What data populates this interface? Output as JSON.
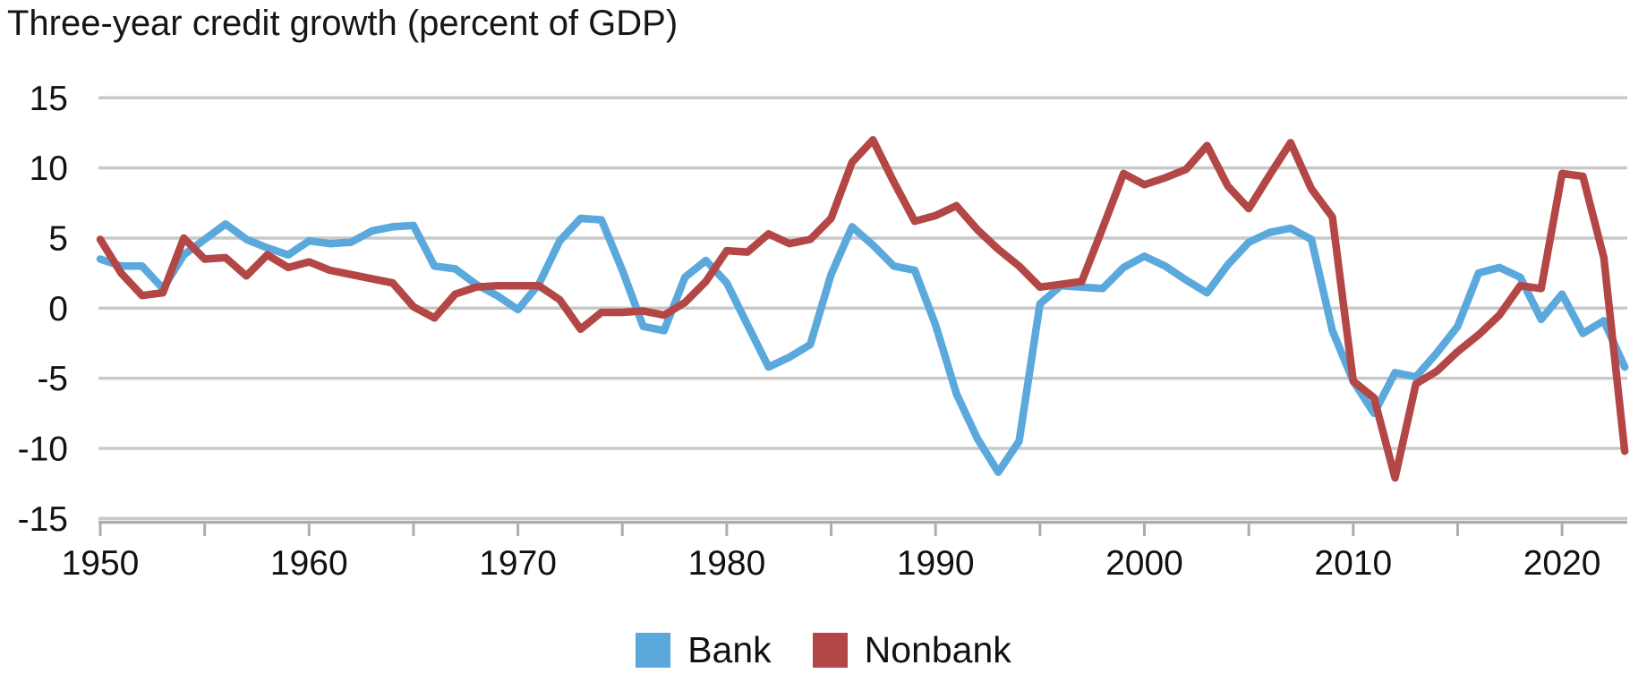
{
  "title": "Three-year credit growth (percent of GDP)",
  "legend": [
    {
      "label": "Bank",
      "color": "#5BA9DC"
    },
    {
      "label": "Nonbank",
      "color": "#B34745"
    }
  ],
  "colors": {
    "bank_line": "#5BA9DC",
    "nonbank_line": "#B34745",
    "gridline": "#C9C9C9",
    "axis_line": "#ADADAD",
    "text": "#111111",
    "background": "#FFFFFF"
  },
  "y_axis_tick_labels": [
    "15",
    "10",
    "5",
    "0",
    "-5",
    "-10",
    "-15"
  ],
  "x_axis_tick_labels": [
    "1950",
    "1960",
    "1970",
    "1980",
    "1990",
    "2000",
    "2010",
    "2020"
  ],
  "chart_data": {
    "type": "line",
    "title": "Three-year credit growth (percent of GDP)",
    "xlabel": "",
    "ylabel": "",
    "ylim": [
      -15,
      15
    ],
    "ytick_interval": 5,
    "xtick_labeled_years": [
      1950,
      1960,
      1970,
      1980,
      1990,
      2000,
      2010,
      2020
    ],
    "xtick_minor_interval_years": 5,
    "grid": "horizontal",
    "legend_position": "bottom-center",
    "years": [
      1950,
      1951,
      1952,
      1953,
      1954,
      1955,
      1956,
      1957,
      1958,
      1959,
      1960,
      1961,
      1962,
      1963,
      1964,
      1965,
      1966,
      1967,
      1968,
      1969,
      1970,
      1971,
      1972,
      1973,
      1974,
      1975,
      1976,
      1977,
      1978,
      1979,
      1980,
      1981,
      1982,
      1983,
      1984,
      1985,
      1986,
      1987,
      1988,
      1989,
      1990,
      1991,
      1992,
      1993,
      1994,
      1995,
      1996,
      1997,
      1998,
      1999,
      2000,
      2001,
      2002,
      2003,
      2004,
      2005,
      2006,
      2007,
      2008,
      2009,
      2010,
      2011,
      2012,
      2013,
      2014,
      2015,
      2016,
      2017,
      2018,
      2019,
      2020,
      2021,
      2022,
      2023
    ],
    "series": [
      {
        "name": "Bank",
        "color": "#5BA9DC",
        "values": [
          3.5,
          3.0,
          3.0,
          1.4,
          3.8,
          4.9,
          6.0,
          4.9,
          4.3,
          3.8,
          4.8,
          4.6,
          4.7,
          5.5,
          5.8,
          5.9,
          3.0,
          2.8,
          1.7,
          0.9,
          -0.1,
          1.7,
          4.8,
          6.4,
          6.3,
          2.7,
          -1.3,
          -1.6,
          2.2,
          3.4,
          1.8,
          -1.2,
          -4.2,
          -3.5,
          -2.6,
          2.4,
          5.8,
          4.5,
          3.0,
          2.7,
          -1.2,
          -6.1,
          -9.3,
          -11.7,
          -9.5,
          0.3,
          1.6,
          1.5,
          1.4,
          2.9,
          3.7,
          3.0,
          2.0,
          1.1,
          3.1,
          4.7,
          5.4,
          5.7,
          4.9,
          -1.6,
          -5.2,
          -7.5,
          -4.6,
          -4.9,
          -3.2,
          -1.3,
          2.5,
          2.9,
          2.2,
          -0.8,
          1.0,
          -1.8,
          -0.9,
          -4.2
        ]
      },
      {
        "name": "Nonbank",
        "color": "#B34745",
        "values": [
          4.9,
          2.5,
          0.9,
          1.1,
          5.0,
          3.5,
          3.6,
          2.3,
          3.8,
          2.9,
          3.3,
          2.7,
          2.4,
          2.1,
          1.8,
          0.1,
          -0.7,
          1.0,
          1.5,
          1.6,
          1.6,
          1.6,
          0.6,
          -1.5,
          -0.3,
          -0.3,
          -0.2,
          -0.5,
          0.4,
          1.9,
          4.1,
          4.0,
          5.3,
          4.6,
          4.9,
          6.4,
          10.4,
          12.0,
          9.0,
          6.2,
          6.6,
          7.3,
          5.6,
          4.2,
          3.0,
          1.5,
          1.7,
          1.9,
          5.7,
          9.6,
          8.8,
          9.3,
          9.9,
          11.6,
          8.7,
          7.1,
          9.5,
          11.8,
          8.5,
          6.5,
          -5.2,
          -6.4,
          -12.1,
          -5.4,
          -4.5,
          -3.1,
          -1.9,
          -0.5,
          1.6,
          1.4,
          9.6,
          9.4,
          3.6,
          -10.2
        ]
      }
    ]
  }
}
